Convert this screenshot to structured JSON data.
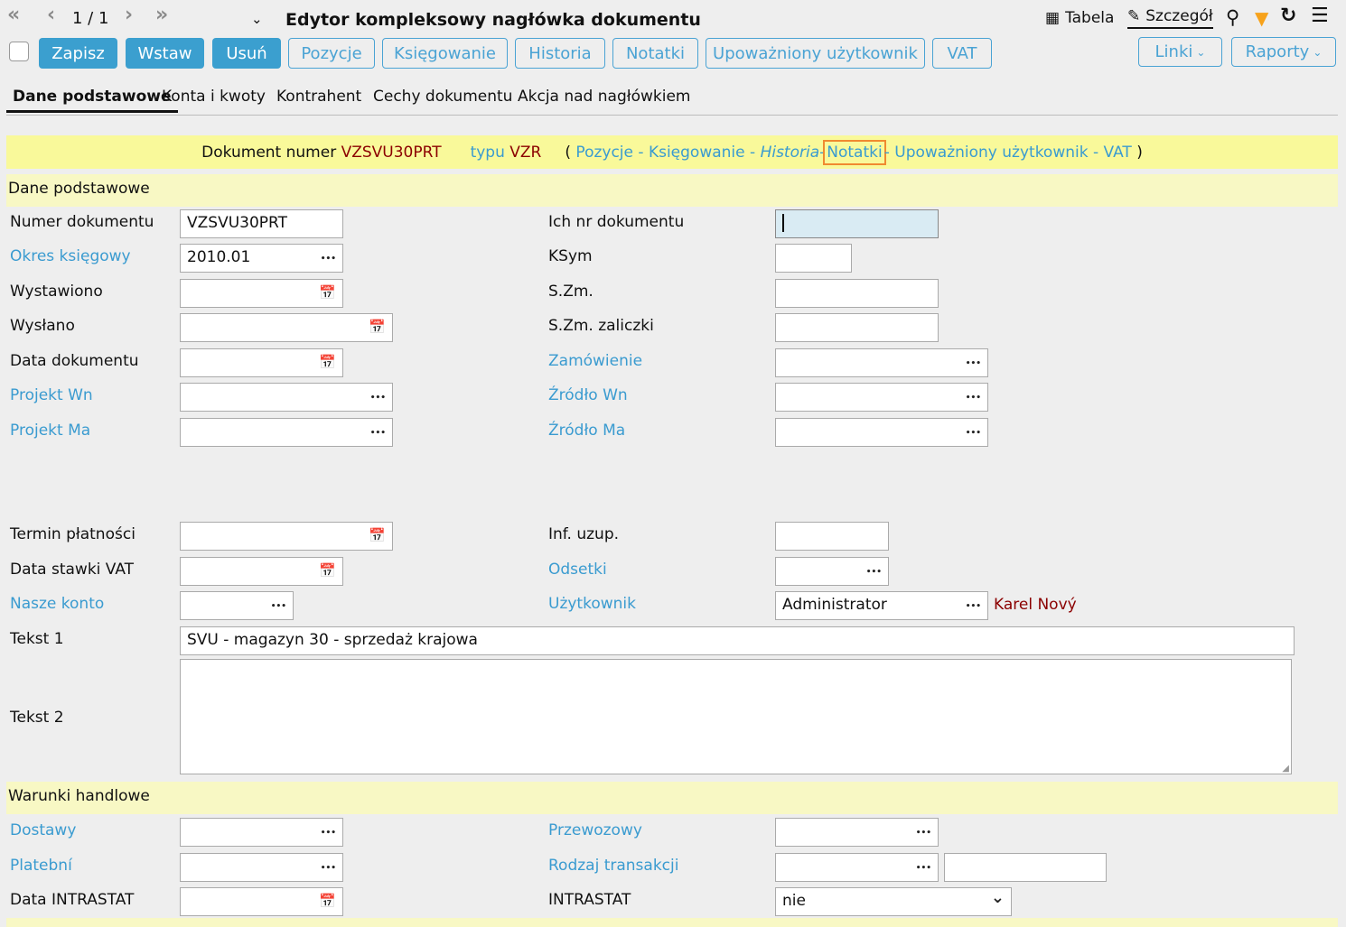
{
  "header": {
    "page": "1 / 1",
    "title": "Edytor kompleksowy nagłówka dokumentu",
    "tabela": "Tabela",
    "szczegol": "Szczegół",
    "filter_color": "#f7a21b",
    "accent": "#3b9fcf"
  },
  "toolbar": {
    "buttons": [
      "Zapisz",
      "Wstaw",
      "Usuń"
    ],
    "links": [
      "Pozycje",
      "Księgowanie",
      "Historia",
      "Notatki",
      "Upoważniony użytkownik",
      "VAT"
    ],
    "dropdowns": [
      "Linki",
      "Raporty"
    ]
  },
  "tabs": [
    "Dane podstawowe",
    "Konta i kwoty",
    "Kontrahent",
    "Cechy dokumentu",
    "Akcja nad nagłówkiem"
  ],
  "docbar": {
    "label": "Dokument numer",
    "number": "VZSVU30PRT",
    "type_label": "typu",
    "type": "VZR",
    "open": "(",
    "links": [
      "Pozycje",
      "Księgowanie",
      "Historia",
      "Notatki",
      "Upoważniony użytkownik",
      "VAT"
    ],
    "sep": "-",
    "close": ")"
  },
  "sections": [
    "Dane podstawowe",
    "Warunki handlowe"
  ],
  "left_fields": [
    {
      "label": "Numer dokumentu",
      "link": false,
      "value": "VZSVU30PRT",
      "control": ""
    },
    {
      "label": "Okres księgowy",
      "link": true,
      "value": "2010.01",
      "control": "dots"
    },
    {
      "label": "Wystawiono",
      "link": false,
      "value": "",
      "control": "calendar"
    },
    {
      "label": "Wysłano",
      "link": false,
      "value": "",
      "control": "calendar"
    },
    {
      "label": "Data dokumentu",
      "link": false,
      "value": "",
      "control": "calendar"
    },
    {
      "label": "Projekt Wn",
      "link": true,
      "value": "",
      "control": "dots"
    },
    {
      "label": "Projekt Ma",
      "link": true,
      "value": "",
      "control": "dots"
    },
    {
      "label": "Termin płatności",
      "link": false,
      "value": "",
      "control": "calendar"
    },
    {
      "label": "Data stawki VAT",
      "link": false,
      "value": "",
      "control": "calendar"
    },
    {
      "label": "Nasze konto",
      "link": true,
      "value": "",
      "control": "dots"
    },
    {
      "label": "Tekst 1",
      "link": false,
      "value": "SVU - magazyn 30 - sprzedaż krajowa",
      "control": ""
    },
    {
      "label": "Tekst 2",
      "link": false,
      "value": "",
      "control": ""
    },
    {
      "label": "Dostawy",
      "link": true,
      "value": "",
      "control": "dots"
    },
    {
      "label": "Platební",
      "link": true,
      "value": "",
      "control": "dots"
    },
    {
      "label": "Data INTRASTAT",
      "link": false,
      "value": "",
      "control": "calendar"
    }
  ],
  "right_fields": [
    {
      "label": "Ich nr dokumentu",
      "link": false,
      "value": "",
      "control": ""
    },
    {
      "label": "KSym",
      "link": false,
      "value": "",
      "control": ""
    },
    {
      "label": "S.Zm.",
      "link": false,
      "value": "",
      "control": ""
    },
    {
      "label": "S.Zm. zaliczki",
      "link": false,
      "value": "",
      "control": ""
    },
    {
      "label": "Zamówienie",
      "link": true,
      "value": "",
      "control": "dots"
    },
    {
      "label": "Źródło Wn",
      "link": true,
      "value": "",
      "control": "dots"
    },
    {
      "label": "Źródło Ma",
      "link": true,
      "value": "",
      "control": "dots"
    },
    {
      "label": "Inf. uzup.",
      "link": false,
      "value": "",
      "control": ""
    },
    {
      "label": "Odsetki",
      "link": true,
      "value": "",
      "control": "dots"
    },
    {
      "label": "Użytkownik",
      "link": true,
      "value": "Administrator",
      "control": "dots"
    },
    {
      "label": "Przewozowy",
      "link": true,
      "value": "",
      "control": "dots"
    },
    {
      "label": "Rodzaj transakcji",
      "link": true,
      "value": "",
      "control": "dots"
    },
    {
      "label": "INTRASTAT",
      "link": false,
      "value": "nie",
      "control": "select"
    }
  ],
  "user_name": "Karel Nový"
}
